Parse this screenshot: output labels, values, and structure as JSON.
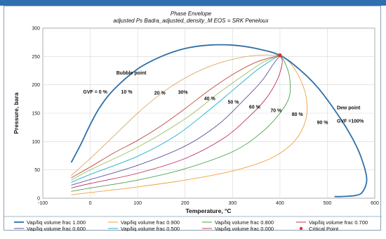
{
  "chart_data": {
    "type": "line",
    "title": "Phase Envelope",
    "subtitle": "adjusted Ps Badra_adjusted_density_M EOS = SRK Peneloux",
    "xlabel": "Temperature, °C",
    "ylabel": "Pressure, bara",
    "xlim": [
      -100,
      600
    ],
    "ylim": [
      0,
      300
    ],
    "xticks": [
      "-100",
      "0",
      "100",
      "200",
      "300",
      "400",
      "500",
      "600"
    ],
    "yticks": [
      "0",
      "50",
      "100",
      "150",
      "200",
      "250",
      "300"
    ],
    "grid": true,
    "legend_position": "bottom",
    "series": [
      {
        "name": "Vap/liq volume frac 1.000",
        "color": "#2f6fa6",
        "points": [
          [
            -40,
            63
          ],
          [
            -20,
            95
          ],
          [
            0,
            130
          ],
          [
            20,
            160
          ],
          [
            50,
            192
          ],
          [
            100,
            228
          ],
          [
            150,
            250
          ],
          [
            200,
            264
          ],
          [
            250,
            270
          ],
          [
            300,
            270
          ],
          [
            350,
            264
          ],
          [
            400,
            252
          ],
          [
            440,
            228
          ],
          [
            480,
            195
          ],
          [
            520,
            150
          ],
          [
            550,
            110
          ],
          [
            570,
            75
          ],
          [
            583,
            35
          ],
          [
            575,
            12
          ],
          [
            560,
            5
          ],
          [
            530,
            3
          ],
          [
            515,
            3
          ]
        ]
      },
      {
        "name": "Vap/liq volume frac 0.900",
        "color": "#f0a040",
        "points": [
          [
            -40,
            6
          ],
          [
            0,
            10
          ],
          [
            100,
            20
          ],
          [
            200,
            32
          ],
          [
            300,
            48
          ],
          [
            380,
            70
          ],
          [
            430,
            100
          ],
          [
            455,
            140
          ],
          [
            455,
            180
          ],
          [
            440,
            215
          ],
          [
            420,
            240
          ],
          [
            400,
            252
          ]
        ]
      },
      {
        "name": "Vap/liq volume frac 0.800",
        "color": "#4aa04a",
        "points": [
          [
            -40,
            12
          ],
          [
            0,
            18
          ],
          [
            100,
            32
          ],
          [
            200,
            52
          ],
          [
            300,
            82
          ],
          [
            360,
            115
          ],
          [
            400,
            150
          ],
          [
            420,
            180
          ],
          [
            420,
            215
          ],
          [
            410,
            240
          ],
          [
            400,
            252
          ]
        ]
      },
      {
        "name": "Vap/liq volume frac 0.700",
        "color": "#c0306a",
        "points": [
          [
            -40,
            18
          ],
          [
            0,
            26
          ],
          [
            100,
            44
          ],
          [
            200,
            70
          ],
          [
            280,
            105
          ],
          [
            330,
            140
          ],
          [
            370,
            175
          ],
          [
            395,
            210
          ],
          [
            405,
            240
          ],
          [
            400,
            252
          ]
        ]
      },
      {
        "name": "Vap/liq volume frac 0.600",
        "color": "#6050a0",
        "points": [
          [
            -40,
            23
          ],
          [
            0,
            33
          ],
          [
            100,
            58
          ],
          [
            200,
            92
          ],
          [
            270,
            130
          ],
          [
            320,
            170
          ],
          [
            360,
            205
          ],
          [
            385,
            235
          ],
          [
            400,
            252
          ]
        ]
      },
      {
        "name": "Vap/liq volume frac 0.500",
        "color": "#20b0c8",
        "points": [
          [
            -40,
            28
          ],
          [
            0,
            42
          ],
          [
            100,
            74
          ],
          [
            180,
            110
          ],
          [
            250,
            155
          ],
          [
            300,
            190
          ],
          [
            350,
            225
          ],
          [
            385,
            245
          ],
          [
            400,
            252
          ]
        ]
      },
      {
        "name": "Vap/liq volume frac 0.000",
        "color": "#c04a3a",
        "points": [
          [
            -40,
            36
          ],
          [
            0,
            55
          ],
          [
            50,
            80
          ],
          [
            100,
            102
          ],
          [
            150,
            128
          ],
          [
            200,
            158
          ],
          [
            250,
            190
          ],
          [
            300,
            218
          ],
          [
            350,
            240
          ],
          [
            400,
            252
          ]
        ]
      },
      {
        "name": "",
        "color": "#d8a868",
        "points": [
          [
            -40,
            40
          ],
          [
            0,
            70
          ],
          [
            50,
            110
          ],
          [
            100,
            150
          ],
          [
            150,
            185
          ],
          [
            200,
            212
          ],
          [
            250,
            232
          ],
          [
            300,
            245
          ],
          [
            350,
            252
          ],
          [
            400,
            252
          ]
        ]
      },
      {
        "name": "",
        "color": "#9cc060",
        "points": [
          [
            -40,
            32
          ],
          [
            0,
            50
          ],
          [
            100,
            90
          ],
          [
            200,
            140
          ],
          [
            270,
            185
          ],
          [
            320,
            215
          ],
          [
            365,
            240
          ],
          [
            400,
            252
          ]
        ]
      }
    ],
    "critical_point": {
      "name": "Critical Point",
      "x": 400,
      "y": 252,
      "color": "#e03030"
    },
    "annotations": [
      {
        "text": "Bubble point",
        "x": 55,
        "y": 218
      },
      {
        "text": "GVF = 0 %",
        "x": -15,
        "y": 185
      },
      {
        "text": "10 %",
        "x": 65,
        "y": 185
      },
      {
        "text": "20 %",
        "x": 135,
        "y": 183
      },
      {
        "text": "30%",
        "x": 185,
        "y": 184
      },
      {
        "text": "40 %",
        "x": 240,
        "y": 173
      },
      {
        "text": "50 %",
        "x": 290,
        "y": 167
      },
      {
        "text": "60 %",
        "x": 335,
        "y": 158
      },
      {
        "text": "70 %",
        "x": 380,
        "y": 152
      },
      {
        "text": "80 %",
        "x": 425,
        "y": 145
      },
      {
        "text": "90 %",
        "x": 478,
        "y": 131
      },
      {
        "text": "Dew point",
        "x": 520,
        "y": 157
      },
      {
        "text": "GVF =100%",
        "x": 520,
        "y": 133
      }
    ]
  }
}
